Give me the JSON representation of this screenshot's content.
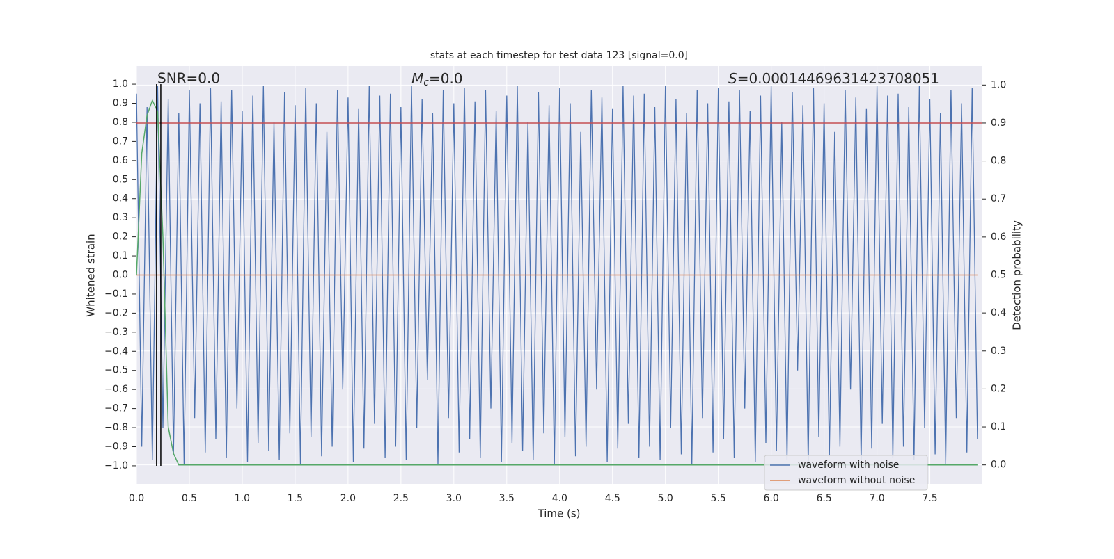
{
  "chart_data": {
    "type": "line",
    "title": "stats at each timestep for test data 123 [signal=0.0]",
    "annotations": [
      {
        "text": "SNR=0.0"
      },
      {
        "symbol": "M",
        "subscript": "c",
        "text": "=0.0"
      },
      {
        "symbol": "S",
        "text": "=0.00014469631423708051"
      }
    ],
    "x_label": "Time (s)",
    "y_label": "Whitened strain",
    "y2_label": "Detection probability",
    "xlim": [
      0,
      7.99
    ],
    "ylim": [
      -1.095,
      1.095
    ],
    "y2lim": [
      -0.05,
      1.05
    ],
    "xticks": [
      {
        "value": 0,
        "label": "0.0"
      },
      0.5,
      {
        "value": 1,
        "label": "1.0"
      },
      1.5,
      {
        "value": 2,
        "label": "2.0"
      },
      2.5,
      {
        "value": 3,
        "label": "3.0"
      },
      3.5,
      {
        "value": 4,
        "label": "4.0"
      },
      4.5,
      {
        "value": 5,
        "label": "5.0"
      },
      5.5,
      {
        "value": 6,
        "label": "6.0"
      },
      6.5,
      {
        "value": 7,
        "label": "7.0"
      },
      7.5
    ],
    "yticks": [
      {
        "value": -1,
        "label": "−1.0"
      },
      {
        "value": -0.9,
        "label": "−0.9"
      },
      {
        "value": -0.8,
        "label": "−0.8"
      },
      {
        "value": -0.7,
        "label": "−0.7"
      },
      {
        "value": -0.6,
        "label": "−0.6"
      },
      {
        "value": -0.5,
        "label": "−0.5"
      },
      {
        "value": -0.4,
        "label": "−0.4"
      },
      {
        "value": -0.3,
        "label": "−0.3"
      },
      {
        "value": -0.2,
        "label": "−0.2"
      },
      {
        "value": -0.1,
        "label": "−0.1"
      },
      {
        "value": 0,
        "label": "0.0"
      },
      0.1,
      0.2,
      0.3,
      0.4,
      0.5,
      0.6,
      0.7,
      0.8,
      0.9,
      {
        "value": 1,
        "label": "1.0"
      }
    ],
    "y2ticks": [
      {
        "value": 0,
        "label": "0.0"
      },
      0.1,
      0.2,
      0.3,
      0.4,
      0.5,
      0.6,
      0.7,
      0.8,
      0.9,
      {
        "value": 1,
        "label": "1.0"
      }
    ],
    "grid": true,
    "legend": "lower right",
    "series": [
      {
        "name": "waveform with noise",
        "color": "#4c72b0",
        "x": [
          0,
          0.05,
          0.1,
          0.15,
          0.2,
          0.25,
          0.3,
          0.35,
          0.4,
          0.45,
          0.5,
          0.55,
          0.6,
          0.65,
          0.7,
          0.75,
          0.8,
          0.85,
          0.9,
          0.95,
          1,
          1.05,
          1.1,
          1.15,
          1.2,
          1.25,
          1.3,
          1.35,
          1.4,
          1.45,
          1.5,
          1.55,
          1.6,
          1.65,
          1.7,
          1.75,
          1.8,
          1.85,
          1.9,
          1.95,
          2,
          2.05,
          2.1,
          2.15,
          2.2,
          2.25,
          2.3,
          2.35,
          2.4,
          2.45,
          2.5,
          2.55,
          2.6,
          2.65,
          2.7,
          2.75,
          2.8,
          2.85,
          2.9,
          2.95,
          3,
          3.05,
          3.1,
          3.15,
          3.2,
          3.25,
          3.3,
          3.35,
          3.4,
          3.45,
          3.5,
          3.55,
          3.6,
          3.65,
          3.7,
          3.75,
          3.8,
          3.85,
          3.9,
          3.95,
          4,
          4.05,
          4.1,
          4.15,
          4.2,
          4.25,
          4.3,
          4.35,
          4.4,
          4.45,
          4.5,
          4.55,
          4.6,
          4.65,
          4.7,
          4.75,
          4.8,
          4.85,
          4.9,
          4.95,
          5,
          5.05,
          5.1,
          5.15,
          5.2,
          5.25,
          5.3,
          5.35,
          5.4,
          5.45,
          5.5,
          5.55,
          5.6,
          5.65,
          5.7,
          5.75,
          5.8,
          5.85,
          5.9,
          5.95,
          6,
          6.05,
          6.1,
          6.15,
          6.2,
          6.25,
          6.3,
          6.35,
          6.4,
          6.45,
          6.5,
          6.55,
          6.6,
          6.65,
          6.7,
          6.75,
          6.8,
          6.85,
          6.9,
          6.95,
          7,
          7.05,
          7.1,
          7.15,
          7.2,
          7.25,
          7.3,
          7.35,
          7.4,
          7.45,
          7.5,
          7.55,
          7.6,
          7.65,
          7.7,
          7.75,
          7.8,
          7.85,
          7.9,
          7.95
        ],
        "values": [
          0.95,
          -0.9,
          0.88,
          -0.97,
          0.99,
          -0.8,
          0.92,
          -0.94,
          0.85,
          -0.99,
          0.97,
          -0.75,
          0.9,
          -0.93,
          0.98,
          -0.86,
          0.91,
          -0.96,
          0.97,
          -0.7,
          0.86,
          -0.98,
          0.94,
          -0.88,
          0.99,
          -0.92,
          0.8,
          -0.97,
          0.96,
          -0.83,
          0.89,
          -0.99,
          0.98,
          -0.85,
          0.9,
          -0.95,
          0.75,
          -0.9,
          0.97,
          -0.6,
          0.93,
          -0.98,
          0.87,
          -0.91,
          0.99,
          -0.78,
          0.94,
          -0.96,
          0.95,
          -0.9,
          0.88,
          -0.97,
          0.99,
          -0.8,
          0.92,
          -0.55,
          0.85,
          -0.99,
          0.97,
          -0.75,
          0.9,
          -0.93,
          0.98,
          -0.86,
          0.91,
          -0.96,
          0.97,
          -0.7,
          0.86,
          -0.98,
          0.94,
          -0.88,
          0.99,
          -0.92,
          0.8,
          -0.97,
          0.96,
          -0.83,
          0.89,
          -0.99,
          0.98,
          -0.85,
          0.9,
          -0.95,
          0.75,
          -0.9,
          0.97,
          -0.6,
          0.93,
          -0.98,
          0.87,
          -0.91,
          0.99,
          -0.78,
          0.94,
          -0.96,
          0.95,
          -0.9,
          0.88,
          -0.97,
          0.99,
          -0.8,
          0.92,
          -0.94,
          0.85,
          -0.99,
          0.97,
          -0.75,
          0.9,
          -0.93,
          0.98,
          -0.86,
          0.91,
          -0.96,
          0.97,
          -0.7,
          0.86,
          -0.98,
          0.94,
          -0.88,
          0.99,
          -0.92,
          0.8,
          -0.97,
          0.96,
          -0.5,
          0.89,
          -0.99,
          0.98,
          -0.85,
          0.9,
          -0.95,
          0.75,
          -0.9,
          0.97,
          -0.6,
          0.93,
          -0.98,
          0.87,
          -0.91,
          0.99,
          -0.78,
          0.94,
          -0.96,
          0.95,
          -0.9,
          0.88,
          -0.97,
          0.99,
          -0.8,
          0.92,
          -0.94,
          0.85,
          -0.99,
          0.97,
          -0.75,
          0.9,
          -0.93,
          0.98,
          -0.86
        ]
      },
      {
        "name": "waveform without noise",
        "color": "#dd8452",
        "x": [
          0,
          7.95
        ],
        "values": [
          0,
          0
        ]
      }
    ],
    "detection_probability": {
      "axis": "y2",
      "color": "#55a868",
      "x": [
        0,
        0.05,
        0.1,
        0.15,
        0.2,
        0.25,
        0.3,
        0.35,
        0.4,
        7.95
      ],
      "values": [
        0.5,
        0.82,
        0.92,
        0.96,
        0.93,
        0.6,
        0.1,
        0.03,
        0,
        0
      ]
    },
    "hlines": [
      {
        "value": 0.9,
        "axis": "y2",
        "color": "#c44e52"
      }
    ],
    "vlines": [
      {
        "value": 0.19,
        "color": "#000000"
      },
      {
        "value": 0.23,
        "color": "#000000"
      }
    ]
  }
}
